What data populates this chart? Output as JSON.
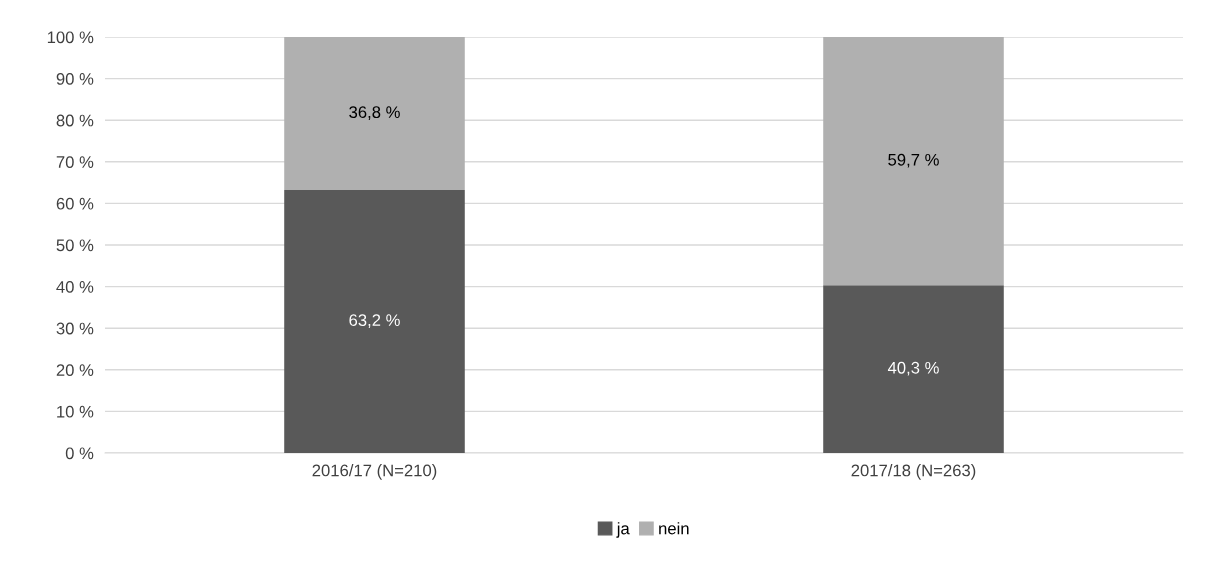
{
  "chart_data": {
    "type": "bar",
    "stacked": true,
    "categories": [
      "2016/17 (N=210)",
      "2017/18 (N=263)"
    ],
    "series": [
      {
        "name": "ja",
        "color": "#595959",
        "values": [
          63.2,
          40.3
        ],
        "value_labels": [
          "63,2 %",
          "40,3 %"
        ]
      },
      {
        "name": "nein",
        "color": "#b0b0b0",
        "values": [
          36.8,
          59.7
        ],
        "value_labels": [
          "36,8 %",
          "59,7 %"
        ]
      }
    ],
    "ylim": [
      0,
      100
    ],
    "yticks": [
      {
        "value": 0,
        "label": "0 %"
      },
      {
        "value": 10,
        "label": "10 %"
      },
      {
        "value": 20,
        "label": "20 %"
      },
      {
        "value": 30,
        "label": "30 %"
      },
      {
        "value": 40,
        "label": "40 %"
      },
      {
        "value": 50,
        "label": "50 %"
      },
      {
        "value": 60,
        "label": "60 %"
      },
      {
        "value": 70,
        "label": "70 %"
      },
      {
        "value": 80,
        "label": "80 %"
      },
      {
        "value": 90,
        "label": "90 %"
      },
      {
        "value": 100,
        "label": "100 %"
      }
    ],
    "grid": "y",
    "legend": "bottom"
  }
}
